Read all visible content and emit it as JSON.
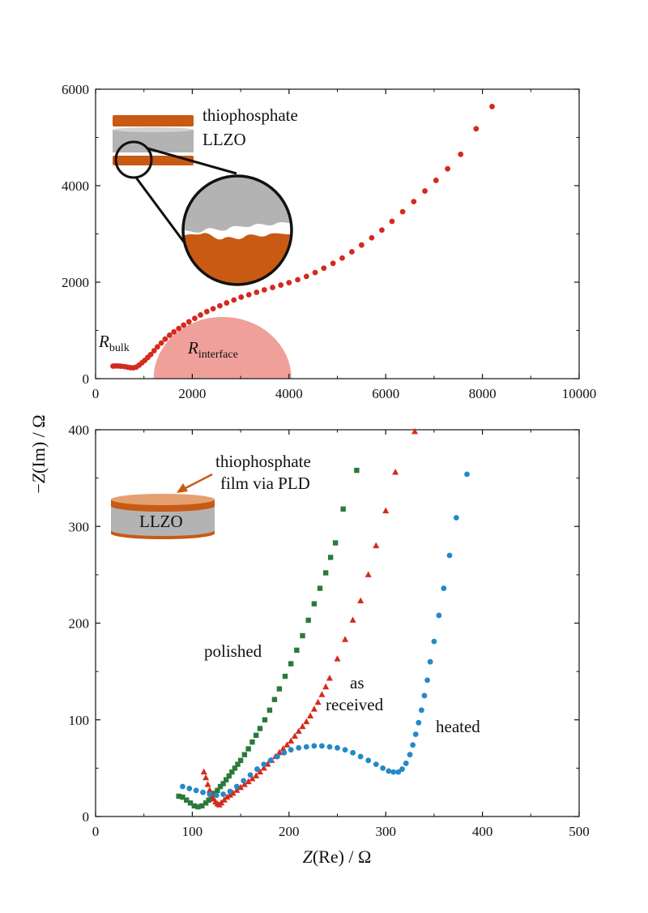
{
  "colors": {
    "red": "#d42a1e",
    "green": "#2b7a3a",
    "blue": "#2389c8",
    "copper": "#c85a14",
    "llzo_gray": "#b3b3b3",
    "arc_fill": "#f0a09a"
  },
  "chart_data": [
    {
      "type": "scatter",
      "id": "top",
      "xlim": [
        0,
        10000
      ],
      "ylim": [
        0,
        6000
      ],
      "xticks": [
        0,
        2000,
        4000,
        6000,
        8000,
        10000
      ],
      "yticks": [
        0,
        2000,
        4000,
        6000
      ],
      "xtick_labels": [
        "0",
        "2000",
        "4000",
        "6000",
        "8000",
        "10000"
      ],
      "ytick_labels": [
        "0",
        "2000",
        "4000",
        "6000"
      ],
      "series": [
        {
          "color": "#d42a1e",
          "marker": "circle",
          "points": [
            [
              360,
              260
            ],
            [
              410,
              265
            ],
            [
              470,
              262
            ],
            [
              530,
              258
            ],
            [
              600,
              250
            ],
            [
              660,
              240
            ],
            [
              720,
              228
            ],
            [
              780,
              225
            ],
            [
              840,
              240
            ],
            [
              900,
              280
            ],
            [
              960,
              330
            ],
            [
              1020,
              380
            ],
            [
              1080,
              440
            ],
            [
              1140,
              500
            ],
            [
              1210,
              580
            ],
            [
              1280,
              660
            ],
            [
              1360,
              740
            ],
            [
              1440,
              820
            ],
            [
              1530,
              900
            ],
            [
              1620,
              970
            ],
            [
              1720,
              1040
            ],
            [
              1820,
              1110
            ],
            [
              1930,
              1180
            ],
            [
              2050,
              1250
            ],
            [
              2170,
              1320
            ],
            [
              2300,
              1390
            ],
            [
              2430,
              1450
            ],
            [
              2570,
              1510
            ],
            [
              2710,
              1570
            ],
            [
              2860,
              1630
            ],
            [
              3010,
              1690
            ],
            [
              3170,
              1740
            ],
            [
              3330,
              1790
            ],
            [
              3490,
              1840
            ],
            [
              3660,
              1890
            ],
            [
              3830,
              1940
            ],
            [
              4000,
              1990
            ],
            [
              4180,
              2050
            ],
            [
              4360,
              2120
            ],
            [
              4540,
              2200
            ],
            [
              4720,
              2290
            ],
            [
              4910,
              2390
            ],
            [
              5100,
              2500
            ],
            [
              5300,
              2630
            ],
            [
              5500,
              2770
            ],
            [
              5710,
              2920
            ],
            [
              5920,
              3080
            ],
            [
              6130,
              3260
            ],
            [
              6350,
              3460
            ],
            [
              6580,
              3670
            ],
            [
              6810,
              3890
            ],
            [
              7040,
              4110
            ],
            [
              7280,
              4350
            ],
            [
              7550,
              4650
            ],
            [
              7870,
              5180
            ],
            [
              8200,
              5640
            ]
          ]
        }
      ],
      "annotations": {
        "rbulk_main": "R",
        "rbulk_sub": "bulk",
        "rinterface_main": "R",
        "rinterface_sub": "interface",
        "inset_label_thio": "thiophosphate",
        "inset_label_llzo": "LLZO"
      }
    },
    {
      "type": "scatter",
      "id": "bottom",
      "xlim": [
        0,
        500
      ],
      "ylim": [
        0,
        400
      ],
      "xticks": [
        0,
        100,
        200,
        300,
        400,
        500
      ],
      "yticks": [
        0,
        100,
        200,
        300,
        400
      ],
      "xtick_labels": [
        "0",
        "100",
        "200",
        "300",
        "400",
        "500"
      ],
      "ytick_labels": [
        "0",
        "100",
        "200",
        "300",
        "400"
      ],
      "series": [
        {
          "color": "#2b7a3a",
          "marker": "square",
          "points": [
            [
              86,
              21
            ],
            [
              90,
              20
            ],
            [
              94,
              17
            ],
            [
              98,
              14
            ],
            [
              102,
              11
            ],
            [
              106,
              10
            ],
            [
              110,
              11
            ],
            [
              114,
              14
            ],
            [
              117,
              17
            ],
            [
              120,
              20
            ],
            [
              123,
              24
            ],
            [
              126,
              27
            ],
            [
              129,
              31
            ],
            [
              132,
              34
            ],
            [
              135,
              38
            ],
            [
              138,
              42
            ],
            [
              141,
              46
            ],
            [
              144,
              50
            ],
            [
              147,
              54
            ],
            [
              150,
              58
            ],
            [
              154,
              64
            ],
            [
              158,
              70
            ],
            [
              162,
              77
            ],
            [
              166,
              84
            ],
            [
              170,
              91
            ],
            [
              175,
              100
            ],
            [
              180,
              110
            ],
            [
              185,
              121
            ],
            [
              190,
              132
            ],
            [
              196,
              145
            ],
            [
              202,
              158
            ],
            [
              208,
              172
            ],
            [
              214,
              187
            ],
            [
              220,
              203
            ],
            [
              226,
              220
            ],
            [
              232,
              236
            ],
            [
              238,
              252
            ],
            [
              243,
              268
            ],
            [
              248,
              283
            ],
            [
              256,
              318
            ],
            [
              270,
              358
            ]
          ]
        },
        {
          "color": "#d42a1e",
          "marker": "triangle",
          "points": [
            [
              112,
              46
            ],
            [
              114,
              40
            ],
            [
              116,
              33
            ],
            [
              118,
              27
            ],
            [
              120,
              22
            ],
            [
              122,
              18
            ],
            [
              124,
              15
            ],
            [
              126,
              13
            ],
            [
              128,
              12
            ],
            [
              130,
              14
            ],
            [
              133,
              17
            ],
            [
              136,
              20
            ],
            [
              139,
              22
            ],
            [
              142,
              24
            ],
            [
              146,
              27
            ],
            [
              150,
              30
            ],
            [
              154,
              33
            ],
            [
              158,
              36
            ],
            [
              162,
              39
            ],
            [
              166,
              42
            ],
            [
              170,
              46
            ],
            [
              174,
              50
            ],
            [
              178,
              54
            ],
            [
              182,
              58
            ],
            [
              186,
              62
            ],
            [
              190,
              66
            ],
            [
              194,
              70
            ],
            [
              198,
              74
            ],
            [
              202,
              78
            ],
            [
              206,
              83
            ],
            [
              210,
              88
            ],
            [
              214,
              93
            ],
            [
              218,
              98
            ],
            [
              222,
              104
            ],
            [
              226,
              111
            ],
            [
              230,
              118
            ],
            [
              234,
              126
            ],
            [
              238,
              134
            ],
            [
              242,
              143
            ],
            [
              250,
              163
            ],
            [
              258,
              183
            ],
            [
              266,
              203
            ],
            [
              274,
              223
            ],
            [
              282,
              250
            ],
            [
              290,
              280
            ],
            [
              300,
              316
            ],
            [
              310,
              356
            ],
            [
              330,
              398
            ]
          ]
        },
        {
          "color": "#2389c8",
          "marker": "circle",
          "points": [
            [
              90,
              31
            ],
            [
              97,
              29
            ],
            [
              104,
              27
            ],
            [
              111,
              25
            ],
            [
              118,
              23
            ],
            [
              125,
              22
            ],
            [
              132,
              23
            ],
            [
              139,
              26
            ],
            [
              146,
              31
            ],
            [
              153,
              37
            ],
            [
              160,
              43
            ],
            [
              167,
              49
            ],
            [
              174,
              54
            ],
            [
              181,
              58
            ],
            [
              188,
              62
            ],
            [
              195,
              66
            ],
            [
              202,
              69
            ],
            [
              210,
              71
            ],
            [
              218,
              72
            ],
            [
              226,
              73
            ],
            [
              234,
              73
            ],
            [
              242,
              72
            ],
            [
              250,
              71
            ],
            [
              258,
              69
            ],
            [
              266,
              66
            ],
            [
              274,
              62
            ],
            [
              282,
              58
            ],
            [
              290,
              54
            ],
            [
              297,
              50
            ],
            [
              303,
              47
            ],
            [
              308,
              46
            ],
            [
              313,
              46
            ],
            [
              317,
              49
            ],
            [
              321,
              55
            ],
            [
              325,
              64
            ],
            [
              328,
              74
            ],
            [
              331,
              85
            ],
            [
              334,
              97
            ],
            [
              337,
              110
            ],
            [
              340,
              125
            ],
            [
              343,
              141
            ],
            [
              346,
              160
            ],
            [
              350,
              181
            ],
            [
              355,
              208
            ],
            [
              360,
              236
            ],
            [
              366,
              270
            ],
            [
              373,
              309
            ],
            [
              384,
              354
            ]
          ]
        }
      ],
      "annotations": {
        "thio_line1": "thiophosphate",
        "thio_line2": "film via PLD",
        "llzo_label": "LLZO",
        "polished": "polished",
        "as": "as",
        "received": "received",
        "heated": "heated"
      }
    }
  ],
  "shared_labels": {
    "y_minus": "−",
    "y_var": "Z",
    "y_rest": "(Im) / Ω",
    "x_var": "Z",
    "x_rest": "(Re) / Ω"
  }
}
